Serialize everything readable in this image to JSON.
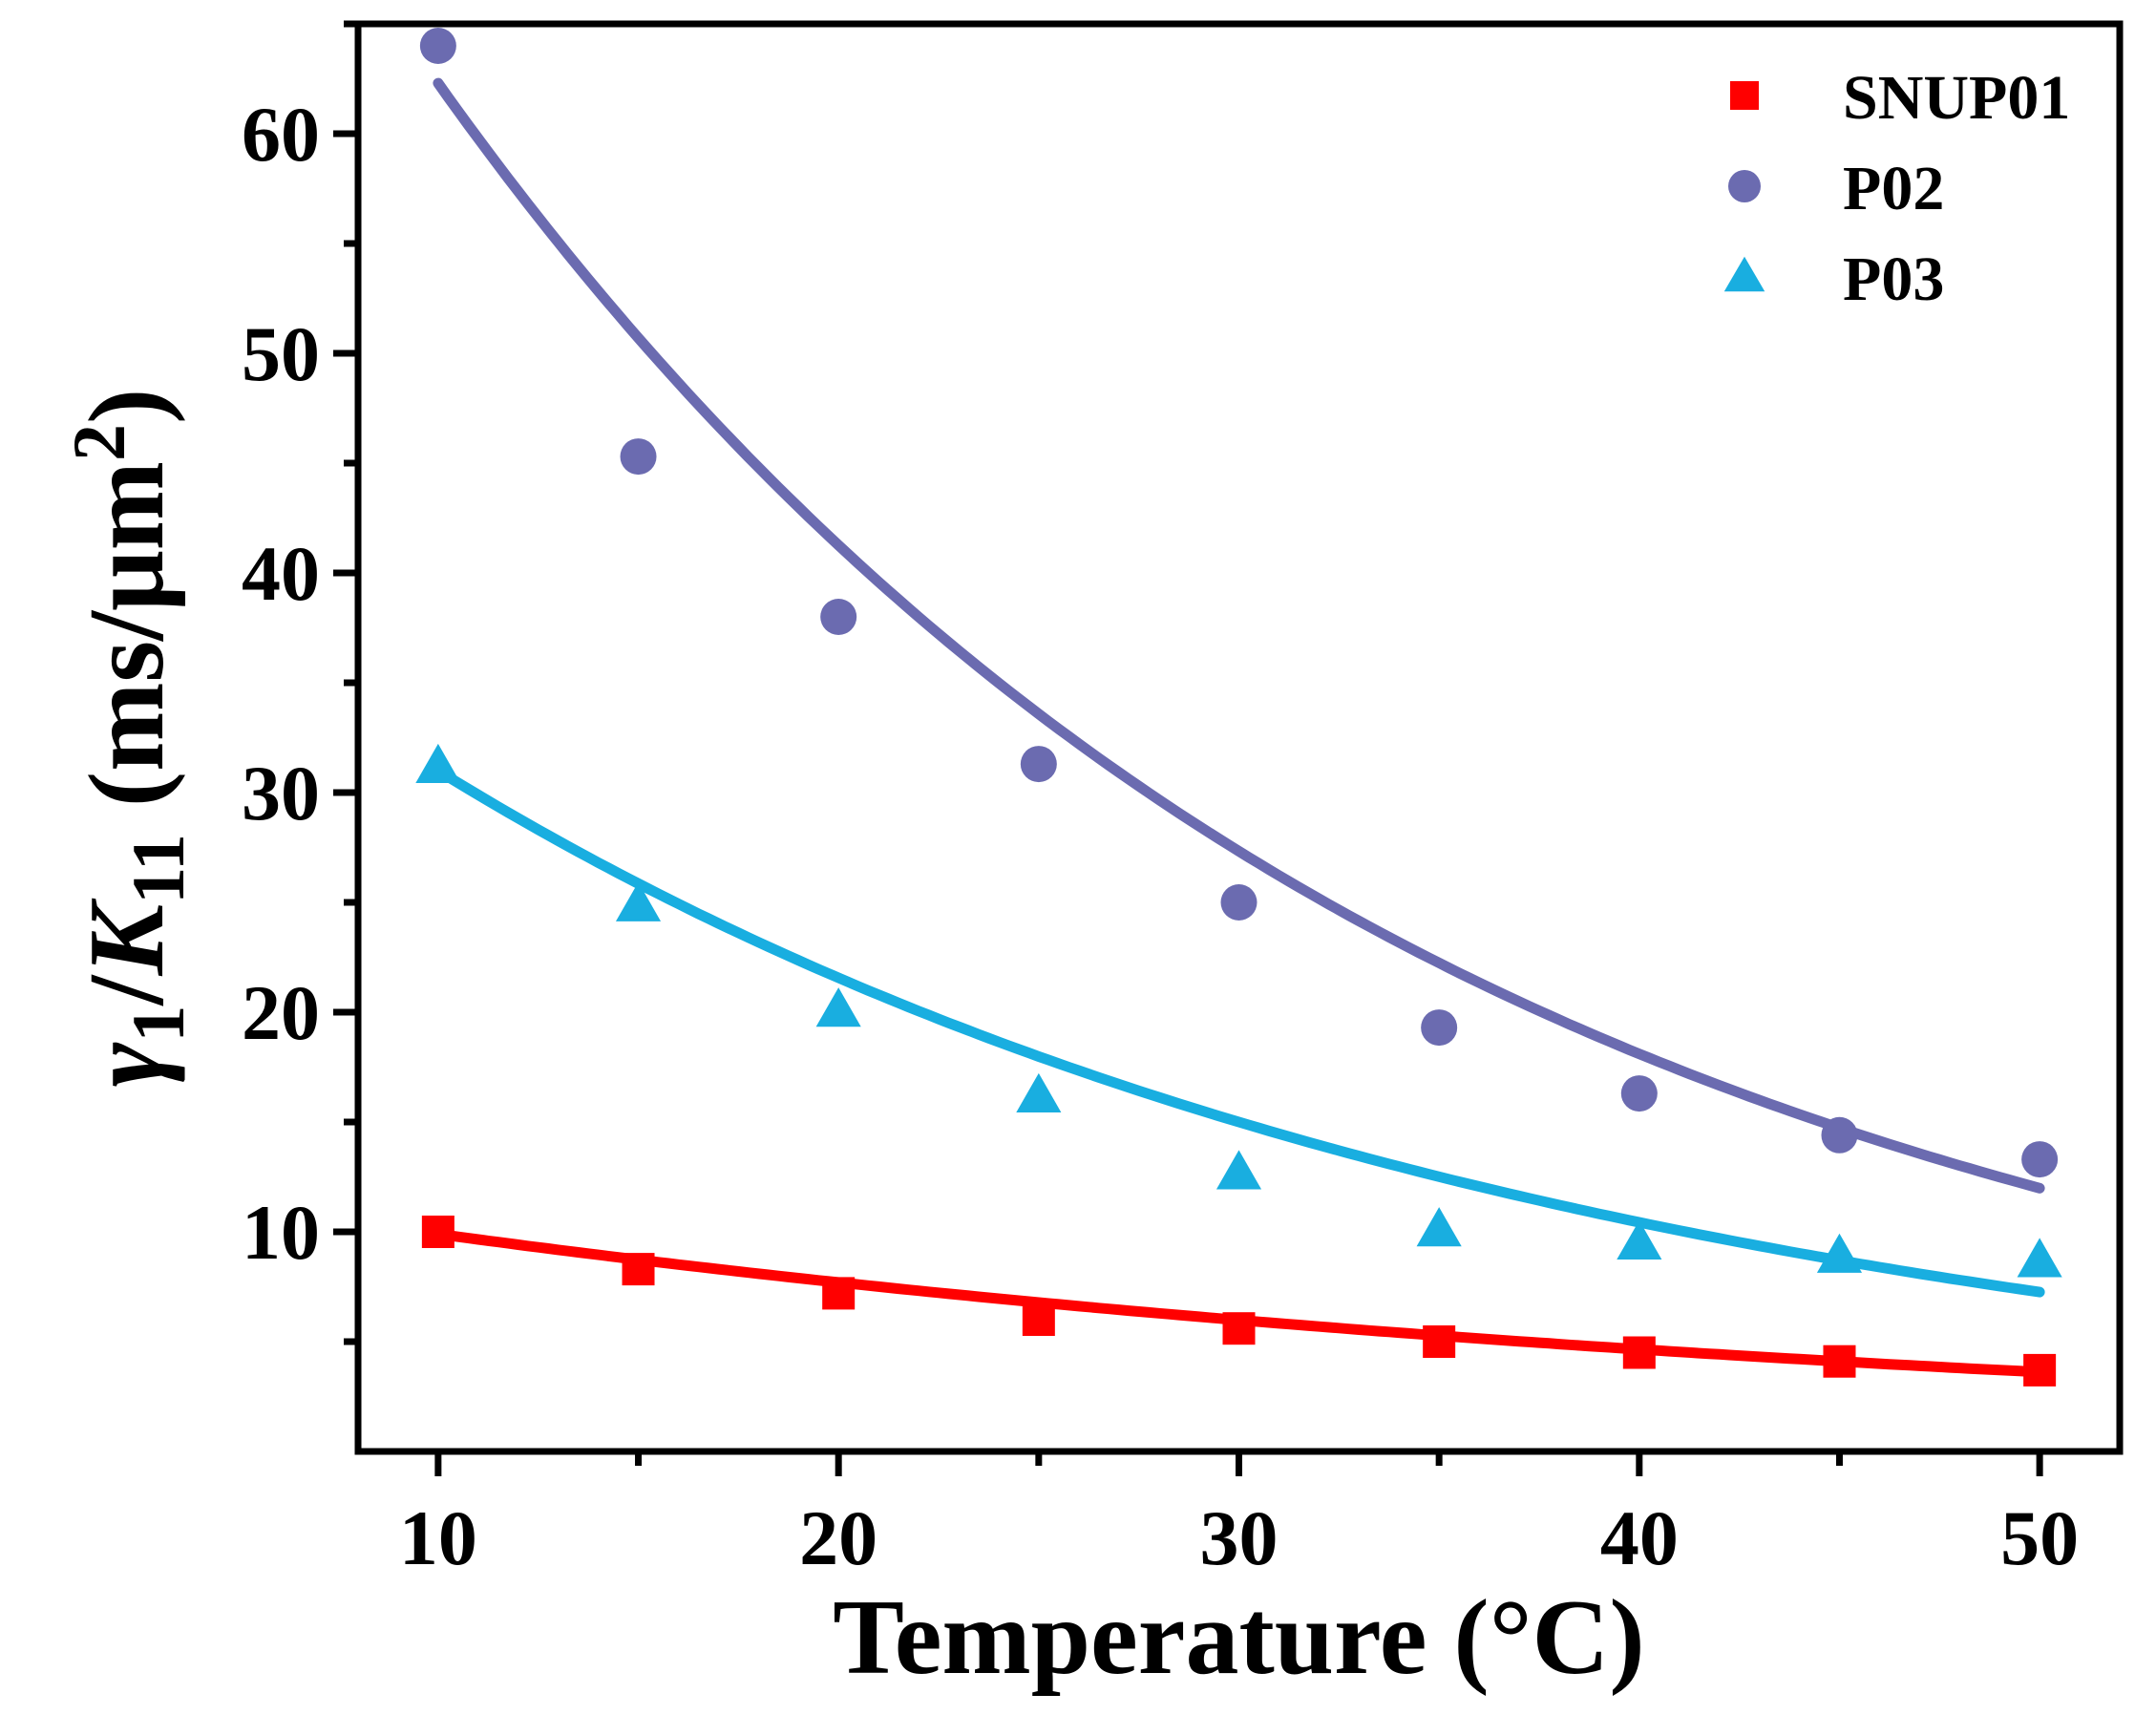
{
  "chart_data": {
    "type": "scatter",
    "title": "",
    "xlabel": "Temperature (°C)",
    "ylabel": {
      "symbol": "γ",
      "symbol_sub": "1",
      "slash": "/",
      "symbol2": "K",
      "symbol2_sub": "11",
      "units_open": " (ms/μm",
      "units_sup": "2",
      "units_close": ")"
    },
    "xlim": [
      8,
      52
    ],
    "ylim": [
      0,
      65
    ],
    "xticks": [
      10,
      20,
      30,
      40,
      50
    ],
    "xtick_labels": [
      "10",
      "20",
      "30",
      "40",
      "50"
    ],
    "xminor": [
      15,
      25,
      35,
      45
    ],
    "yticks": [
      10,
      20,
      30,
      40,
      50,
      60
    ],
    "ytick_labels": [
      "10",
      "20",
      "30",
      "40",
      "50",
      "60"
    ],
    "yminor": [
      5,
      15,
      25,
      35,
      45,
      55,
      65
    ],
    "grid": false,
    "legend_position": "top-right",
    "series": [
      {
        "name": "SNUP01",
        "marker": "square",
        "color": "#ff0000",
        "x": [
          10,
          15,
          20,
          25,
          30,
          35,
          40,
          45,
          50
        ],
        "values": [
          10.0,
          8.3,
          7.2,
          6.0,
          5.6,
          5.0,
          4.5,
          4.1,
          3.7
        ],
        "fit": {
          "a": 9.9,
          "b": 0.0252
        }
      },
      {
        "name": "P02",
        "marker": "circle",
        "color": "#6b6bb0",
        "x": [
          10,
          15,
          20,
          25,
          30,
          35,
          40,
          45,
          50
        ],
        "values": [
          64.0,
          45.3,
          38.0,
          31.3,
          25.0,
          19.3,
          16.3,
          14.4,
          13.3
        ],
        "fit": {
          "a": 62.3,
          "b": 0.0412
        }
      },
      {
        "name": "P03",
        "marker": "triangle",
        "color": "#19aee0",
        "x": [
          10,
          15,
          20,
          25,
          30,
          35,
          40,
          45,
          50
        ],
        "values": [
          31.2,
          24.9,
          20.1,
          16.2,
          12.7,
          10.1,
          9.5,
          8.9,
          8.7
        ],
        "fit": {
          "a": 31.0,
          "b": 0.0363
        }
      }
    ]
  }
}
